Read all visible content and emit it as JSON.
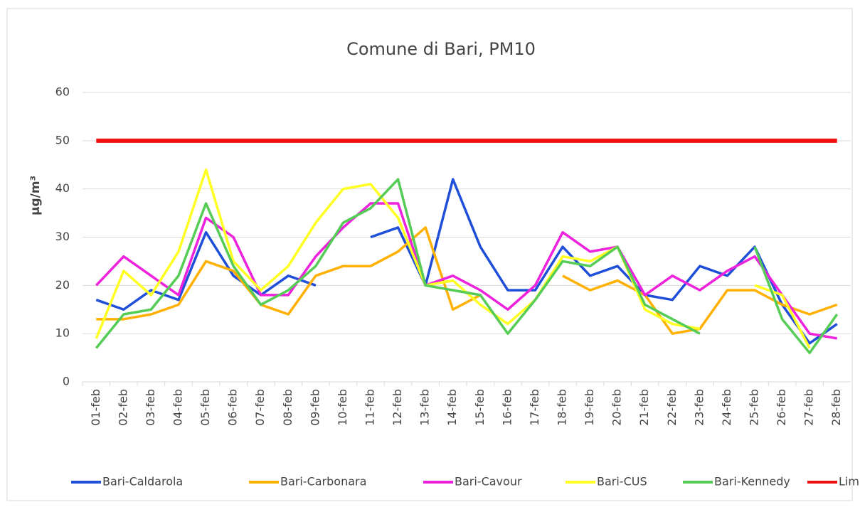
{
  "chart_data": {
    "type": "line",
    "title": "Comune di Bari, PM10",
    "y_label": "µg/m³",
    "categories": [
      "01-feb",
      "02-feb",
      "03-feb",
      "04-feb",
      "05-feb",
      "06-feb",
      "07-feb",
      "08-feb",
      "09-feb",
      "10-feb",
      "11-feb",
      "12-feb",
      "13-feb",
      "14-feb",
      "15-feb",
      "16-feb",
      "17-feb",
      "18-feb",
      "19-feb",
      "20-feb",
      "21-feb",
      "22-feb",
      "23-feb",
      "24-feb",
      "25-feb",
      "26-feb",
      "27-feb",
      "28-feb"
    ],
    "series": [
      {
        "name": "Bari-Caldarola",
        "color": "#1f4fd8",
        "values": [
          17,
          15,
          19,
          17,
          31,
          22,
          18,
          22,
          20,
          null,
          30,
          32,
          20,
          42,
          28,
          19,
          19,
          28,
          22,
          24,
          18,
          17,
          24,
          22,
          28,
          16,
          8,
          12
        ]
      },
      {
        "name": "Bari-Carbonara",
        "color": "#ffb000",
        "values": [
          13,
          13,
          14,
          16,
          25,
          23,
          16,
          14,
          22,
          24,
          24,
          27,
          32,
          15,
          18,
          null,
          null,
          22,
          19,
          21,
          18,
          10,
          11,
          19,
          19,
          16,
          14,
          16
        ]
      },
      {
        "name": "Bari-Cavour",
        "color": "#ee22dd",
        "values": [
          20,
          26,
          22,
          18,
          34,
          30,
          18,
          18,
          26,
          32,
          37,
          37,
          20,
          22,
          19,
          15,
          20,
          31,
          27,
          28,
          18,
          22,
          19,
          23,
          26,
          18,
          10,
          9
        ]
      },
      {
        "name": "Bari-CUS",
        "color": "#ffff22",
        "values": [
          9,
          23,
          18,
          27,
          44,
          25,
          19,
          24,
          33,
          40,
          41,
          34,
          20,
          21,
          16,
          12,
          17,
          26,
          25,
          28,
          15,
          12,
          11,
          null,
          20,
          18,
          7,
          null
        ]
      },
      {
        "name": "Bari-Kennedy",
        "color": "#55cc55",
        "values": [
          7,
          14,
          15,
          22,
          37,
          24,
          16,
          19,
          24,
          33,
          36,
          42,
          20,
          19,
          18,
          10,
          17,
          25,
          24,
          28,
          16,
          13,
          10,
          null,
          28,
          13,
          6,
          14
        ]
      },
      {
        "name": "Limite",
        "color": "#ee1111",
        "values": [
          50,
          50,
          50,
          50,
          50,
          50,
          50,
          50,
          50,
          50,
          50,
          50,
          50,
          50,
          50,
          50,
          50,
          50,
          50,
          50,
          50,
          50,
          50,
          50,
          50,
          50,
          50,
          50
        ]
      }
    ],
    "ylim": [
      0,
      60
    ],
    "yticks": [
      0,
      10,
      20,
      30,
      40,
      50,
      60
    ],
    "grid": true,
    "legend": "bottom"
  }
}
